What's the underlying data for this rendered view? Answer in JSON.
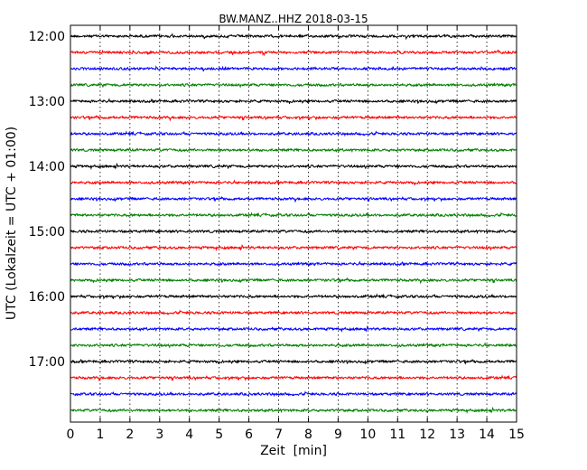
{
  "chart_data": {
    "type": "line",
    "title": "BW.MANZ..HHZ 2018-03-15",
    "xlabel": "Zeit  [min]",
    "ylabel": "UTC (Lokalzeit = UTC + 01:00)",
    "xlim": [
      0,
      15
    ],
    "x_ticks": [
      "0",
      "1",
      "2",
      "3",
      "4",
      "5",
      "6",
      "7",
      "8",
      "9",
      "10",
      "11",
      "12",
      "13",
      "14",
      "15"
    ],
    "y_ticks": [
      "12:00",
      "13:00",
      "14:00",
      "15:00",
      "16:00",
      "17:00"
    ],
    "row_interval_min": 15,
    "start_time": "12:00",
    "grid": "vertical dotted",
    "colors": [
      "#000000",
      "#ff0000",
      "#0000ff",
      "#008000"
    ],
    "traces": [
      {
        "start": "12:00",
        "color": "#000000"
      },
      {
        "start": "12:15",
        "color": "#ff0000"
      },
      {
        "start": "12:30",
        "color": "#0000ff"
      },
      {
        "start": "12:45",
        "color": "#008000"
      },
      {
        "start": "13:00",
        "color": "#000000"
      },
      {
        "start": "13:15",
        "color": "#ff0000"
      },
      {
        "start": "13:30",
        "color": "#0000ff"
      },
      {
        "start": "13:45",
        "color": "#008000"
      },
      {
        "start": "14:00",
        "color": "#000000"
      },
      {
        "start": "14:15",
        "color": "#ff0000"
      },
      {
        "start": "14:30",
        "color": "#0000ff"
      },
      {
        "start": "14:45",
        "color": "#008000"
      },
      {
        "start": "15:00",
        "color": "#000000"
      },
      {
        "start": "15:15",
        "color": "#ff0000"
      },
      {
        "start": "15:30",
        "color": "#0000ff"
      },
      {
        "start": "15:45",
        "color": "#008000"
      },
      {
        "start": "16:00",
        "color": "#000000"
      },
      {
        "start": "16:15",
        "color": "#ff0000"
      },
      {
        "start": "16:30",
        "color": "#0000ff"
      },
      {
        "start": "16:45",
        "color": "#008000"
      },
      {
        "start": "17:00",
        "color": "#000000"
      },
      {
        "start": "17:15",
        "color": "#ff0000"
      },
      {
        "start": "17:30",
        "color": "#0000ff"
      },
      {
        "start": "17:45",
        "color": "#008000"
      }
    ]
  }
}
